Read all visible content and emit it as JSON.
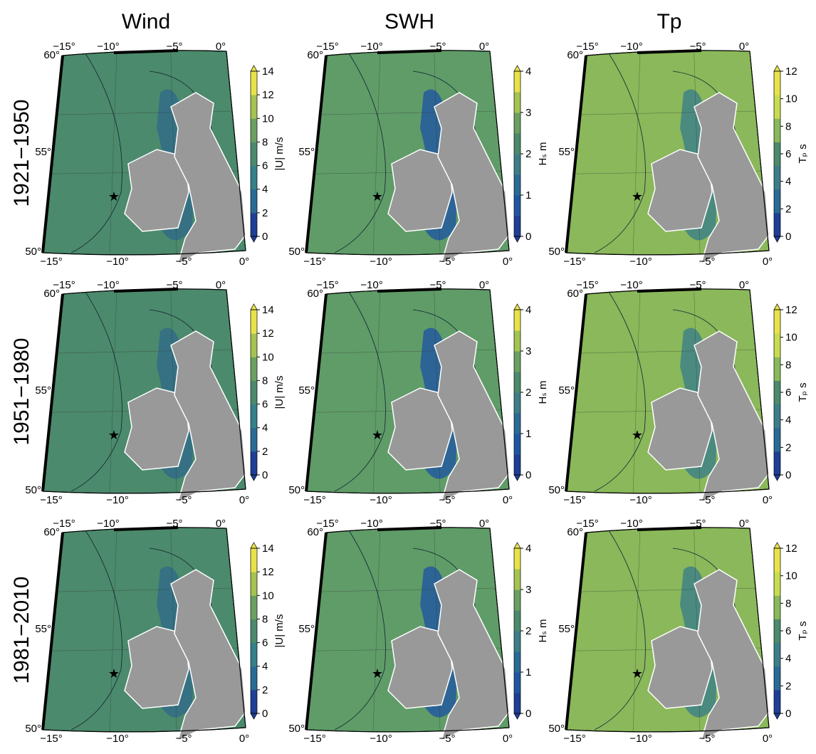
{
  "columns": [
    {
      "title": "Wind",
      "colorbar_label": "|U| m/s",
      "ticks": [
        0,
        2,
        4,
        6,
        8,
        10,
        12,
        14
      ],
      "field_color": "#4b8a6c",
      "low_color": "#2f6a8a",
      "colors": [
        "#1f3f96",
        "#2a6a96",
        "#33818a",
        "#4b8a6c",
        "#6aa060",
        "#a4c350",
        "#e8e24a"
      ]
    },
    {
      "title": "SWH",
      "colorbar_label": "Hₛ m",
      "ticks": [
        0,
        1,
        2,
        3,
        4
      ],
      "field_color": "#5f9c68",
      "low_color": "#1f56a0",
      "colors": [
        "#1f3f96",
        "#1f56a0",
        "#2a6a96",
        "#3b7e88",
        "#4b8a6c",
        "#6aa060",
        "#a4c350",
        "#e8e24a"
      ]
    },
    {
      "title": "Tp",
      "colorbar_label": "Tₚ s",
      "ticks": [
        0,
        2,
        4,
        6,
        8,
        10,
        12
      ],
      "field_color": "#8ab85a",
      "low_color": "#3b7e88",
      "colors": [
        "#1f3f96",
        "#2a6a96",
        "#3b7e88",
        "#4b8a6c",
        "#8ab85a",
        "#c8dc50",
        "#e8e24a"
      ]
    }
  ],
  "rows": [
    "1921−1950",
    "1951−1980",
    "1981−2010"
  ],
  "lon_labels": [
    "−15°",
    "−10°",
    "−5°",
    "0°"
  ],
  "lat_labels": [
    "50°",
    "55°",
    "60°"
  ]
}
